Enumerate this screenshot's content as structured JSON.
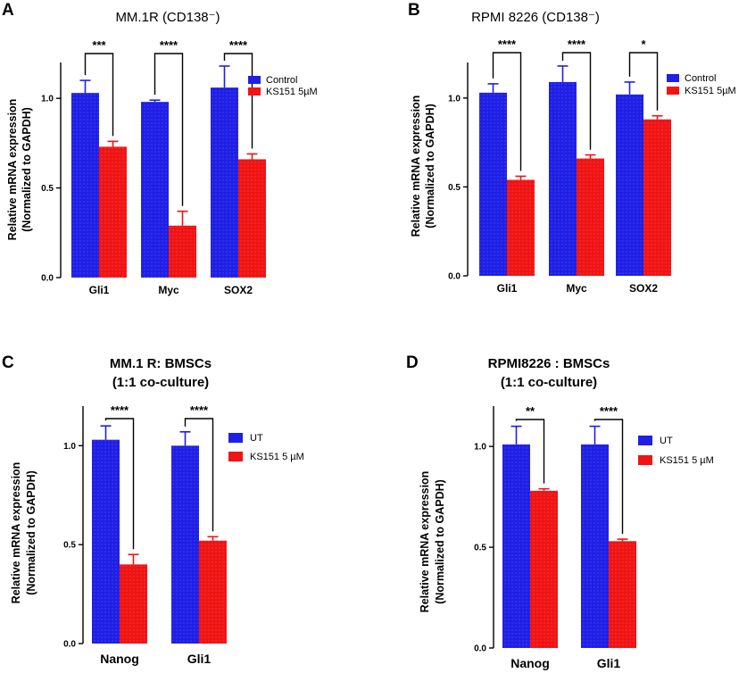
{
  "colors": {
    "control": "#1f1fe6",
    "treated": "#f01414",
    "axis": "#000000",
    "bracket": "#000000"
  },
  "chart_data": [
    {
      "panel": "A",
      "type": "bar",
      "title": "MM.1R (CD138⁻)",
      "ylabel_line1": "Relative mRNA expression",
      "ylabel_line2": "(Normalized to GAPDH)",
      "ylim": [
        0,
        1.2
      ],
      "yticks": [
        0.0,
        0.5,
        1.0
      ],
      "ytick_labels": [
        "0.0",
        "0.5",
        "1.0"
      ],
      "categories": [
        "Gli1",
        "Myc",
        "SOX2"
      ],
      "series": [
        {
          "name": "Control",
          "values": [
            1.03,
            0.98,
            1.06
          ],
          "errors": [
            0.07,
            0.01,
            0.12
          ]
        },
        {
          "name": "KS151 5µM",
          "values": [
            0.73,
            0.29,
            0.66
          ],
          "errors": [
            0.03,
            0.08,
            0.03
          ]
        }
      ],
      "significance": [
        "***",
        "****",
        "****"
      ]
    },
    {
      "panel": "B",
      "type": "bar",
      "title": "RPMI 8226 (CD138⁻)",
      "ylabel_line1": "Relative mRNA expression",
      "ylabel_line2": "(Normalized to GAPDH)",
      "ylim": [
        0,
        1.2
      ],
      "yticks": [
        0.0,
        0.5,
        1.0
      ],
      "ytick_labels": [
        "0.0",
        "0.5",
        "1.0"
      ],
      "categories": [
        "Gli1",
        "Myc",
        "SOX2"
      ],
      "series": [
        {
          "name": "Control",
          "values": [
            1.03,
            1.09,
            1.02
          ],
          "errors": [
            0.05,
            0.09,
            0.07
          ]
        },
        {
          "name": "KS151 5µM",
          "values": [
            0.54,
            0.66,
            0.88
          ],
          "errors": [
            0.02,
            0.02,
            0.02
          ]
        }
      ],
      "significance": [
        "****",
        "****",
        "*"
      ]
    },
    {
      "panel": "C",
      "type": "bar",
      "title_line1": "MM.1 R: BMSCs",
      "title_line2": "(1:1 co-culture)",
      "ylabel_line1": "Relative mRNA expression",
      "ylabel_line2": "(Normalized to GAPDH)",
      "ylim": [
        0,
        1.2
      ],
      "yticks": [
        0.0,
        0.5,
        1.0
      ],
      "ytick_labels": [
        "0.0",
        "0.5",
        "1.0"
      ],
      "categories": [
        "Nanog",
        "Gli1"
      ],
      "series": [
        {
          "name": "UT",
          "values": [
            1.03,
            1.0
          ],
          "errors": [
            0.07,
            0.07
          ]
        },
        {
          "name": "KS151 5 µM",
          "values": [
            0.4,
            0.52
          ],
          "errors": [
            0.05,
            0.02
          ]
        }
      ],
      "significance": [
        "****",
        "****"
      ]
    },
    {
      "panel": "D",
      "type": "bar",
      "title_line1": "RPMI8226 : BMSCs",
      "title_line2": "(1:1 co-culture)",
      "ylabel_line1": "Relative mRNA expression",
      "ylabel_line2": "(Normalized to GAPDH)",
      "ylim": [
        0,
        1.2
      ],
      "yticks": [
        0.0,
        0.5,
        1.0
      ],
      "ytick_labels": [
        "0.0",
        "0.5",
        "1.0"
      ],
      "categories": [
        "Nanog",
        "Gli1"
      ],
      "series": [
        {
          "name": "UT",
          "values": [
            1.01,
            1.01
          ],
          "errors": [
            0.09,
            0.09
          ]
        },
        {
          "name": "KS151 5 µM",
          "values": [
            0.78,
            0.53
          ],
          "errors": [
            0.01,
            0.01
          ]
        }
      ],
      "significance": [
        "**",
        "****"
      ]
    }
  ]
}
